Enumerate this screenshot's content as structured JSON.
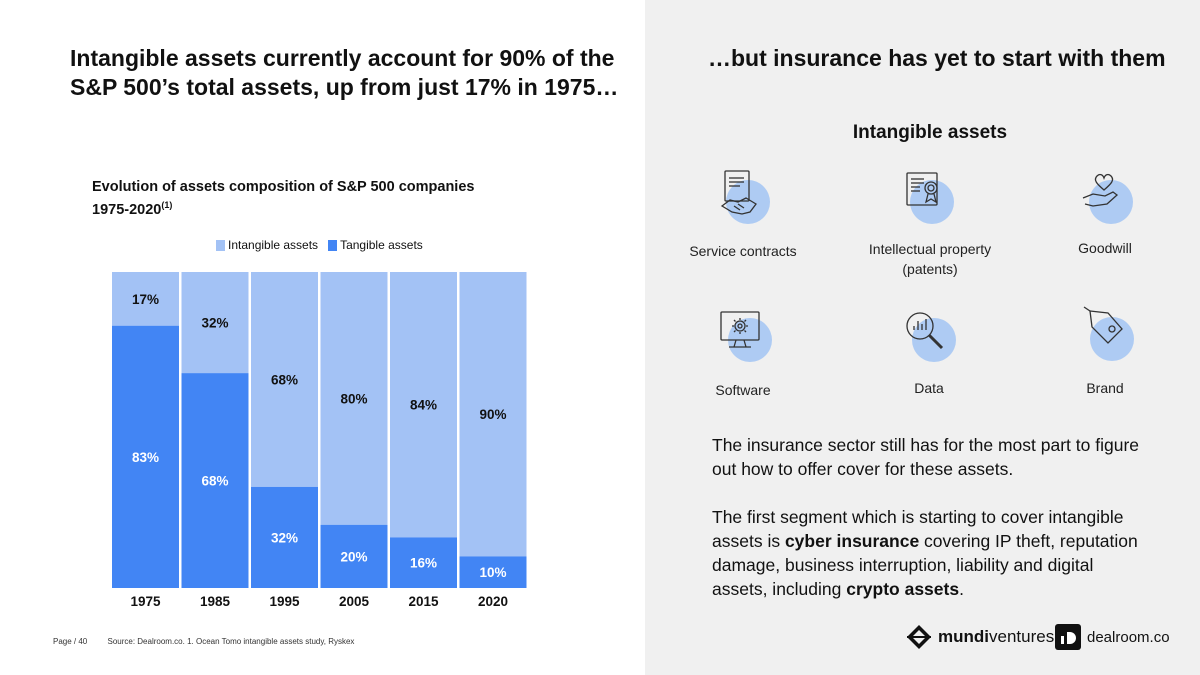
{
  "left_title": "Intangible assets currently account for 90% of the S&P 500’s total assets, up from just 17% in 1975…",
  "right_title": "…but insurance has yet to start with them",
  "chart_title_line1": "Evolution of assets composition of S&P 500 companies",
  "chart_title_line2": "1975-2020",
  "chart_title_sup": "(1)",
  "chart_data": {
    "type": "bar",
    "stacked": true,
    "categories": [
      "1975",
      "1985",
      "1995",
      "2005",
      "2015",
      "2020"
    ],
    "series": [
      {
        "name": "Tangible assets",
        "values": [
          83,
          68,
          32,
          20,
          16,
          10
        ],
        "labels": [
          "83%",
          "68%",
          "32%",
          "20%",
          "16%",
          "10%"
        ],
        "color": "#4285f4",
        "label_color": "#ffffff"
      },
      {
        "name": "Intangible assets",
        "values": [
          17,
          32,
          68,
          80,
          84,
          90
        ],
        "labels": [
          "17%",
          "32%",
          "68%",
          "80%",
          "84%",
          "90%"
        ],
        "color": "#a3c2f5",
        "label_color": "#111111"
      }
    ],
    "legend": [
      "Intangible assets",
      "Tangible assets"
    ],
    "ylim": [
      0,
      100
    ]
  },
  "colors": {
    "intangible": "#a3c2f5",
    "tangible": "#4285f4",
    "icon_circle": "#aecbf3"
  },
  "intangible_section": {
    "title": "Intangible assets",
    "items": [
      {
        "label": "Service contracts",
        "icon": "handshake-contract-icon"
      },
      {
        "label": "Intellectual property (patents)",
        "icon": "certificate-icon"
      },
      {
        "label": "Goodwill",
        "icon": "heart-hand-icon"
      },
      {
        "label": "Software",
        "icon": "monitor-gear-icon"
      },
      {
        "label": "Data",
        "icon": "magnifier-chart-icon"
      },
      {
        "label": "Brand",
        "icon": "tag-icon"
      }
    ]
  },
  "body": {
    "p1": "The insurance sector still has for the most part to figure out how to offer cover for these assets.",
    "p2_before": "The first segment which is starting to cover intangible assets is ",
    "p2_bold1": "cyber insurance",
    "p2_mid": " covering IP theft, reputation damage, business interruption, liability and digital assets, including ",
    "p2_bold2": "crypto assets",
    "p2_end": "."
  },
  "footer": {
    "page": "Page / 40",
    "source": "Source: Dealroom.co.   1. Ocean Tomo intangible assets study, Ryskex"
  },
  "logos": {
    "mundi_bold": "mundi",
    "mundi_rest": "ventures",
    "dealroom": "dealroom.co"
  }
}
